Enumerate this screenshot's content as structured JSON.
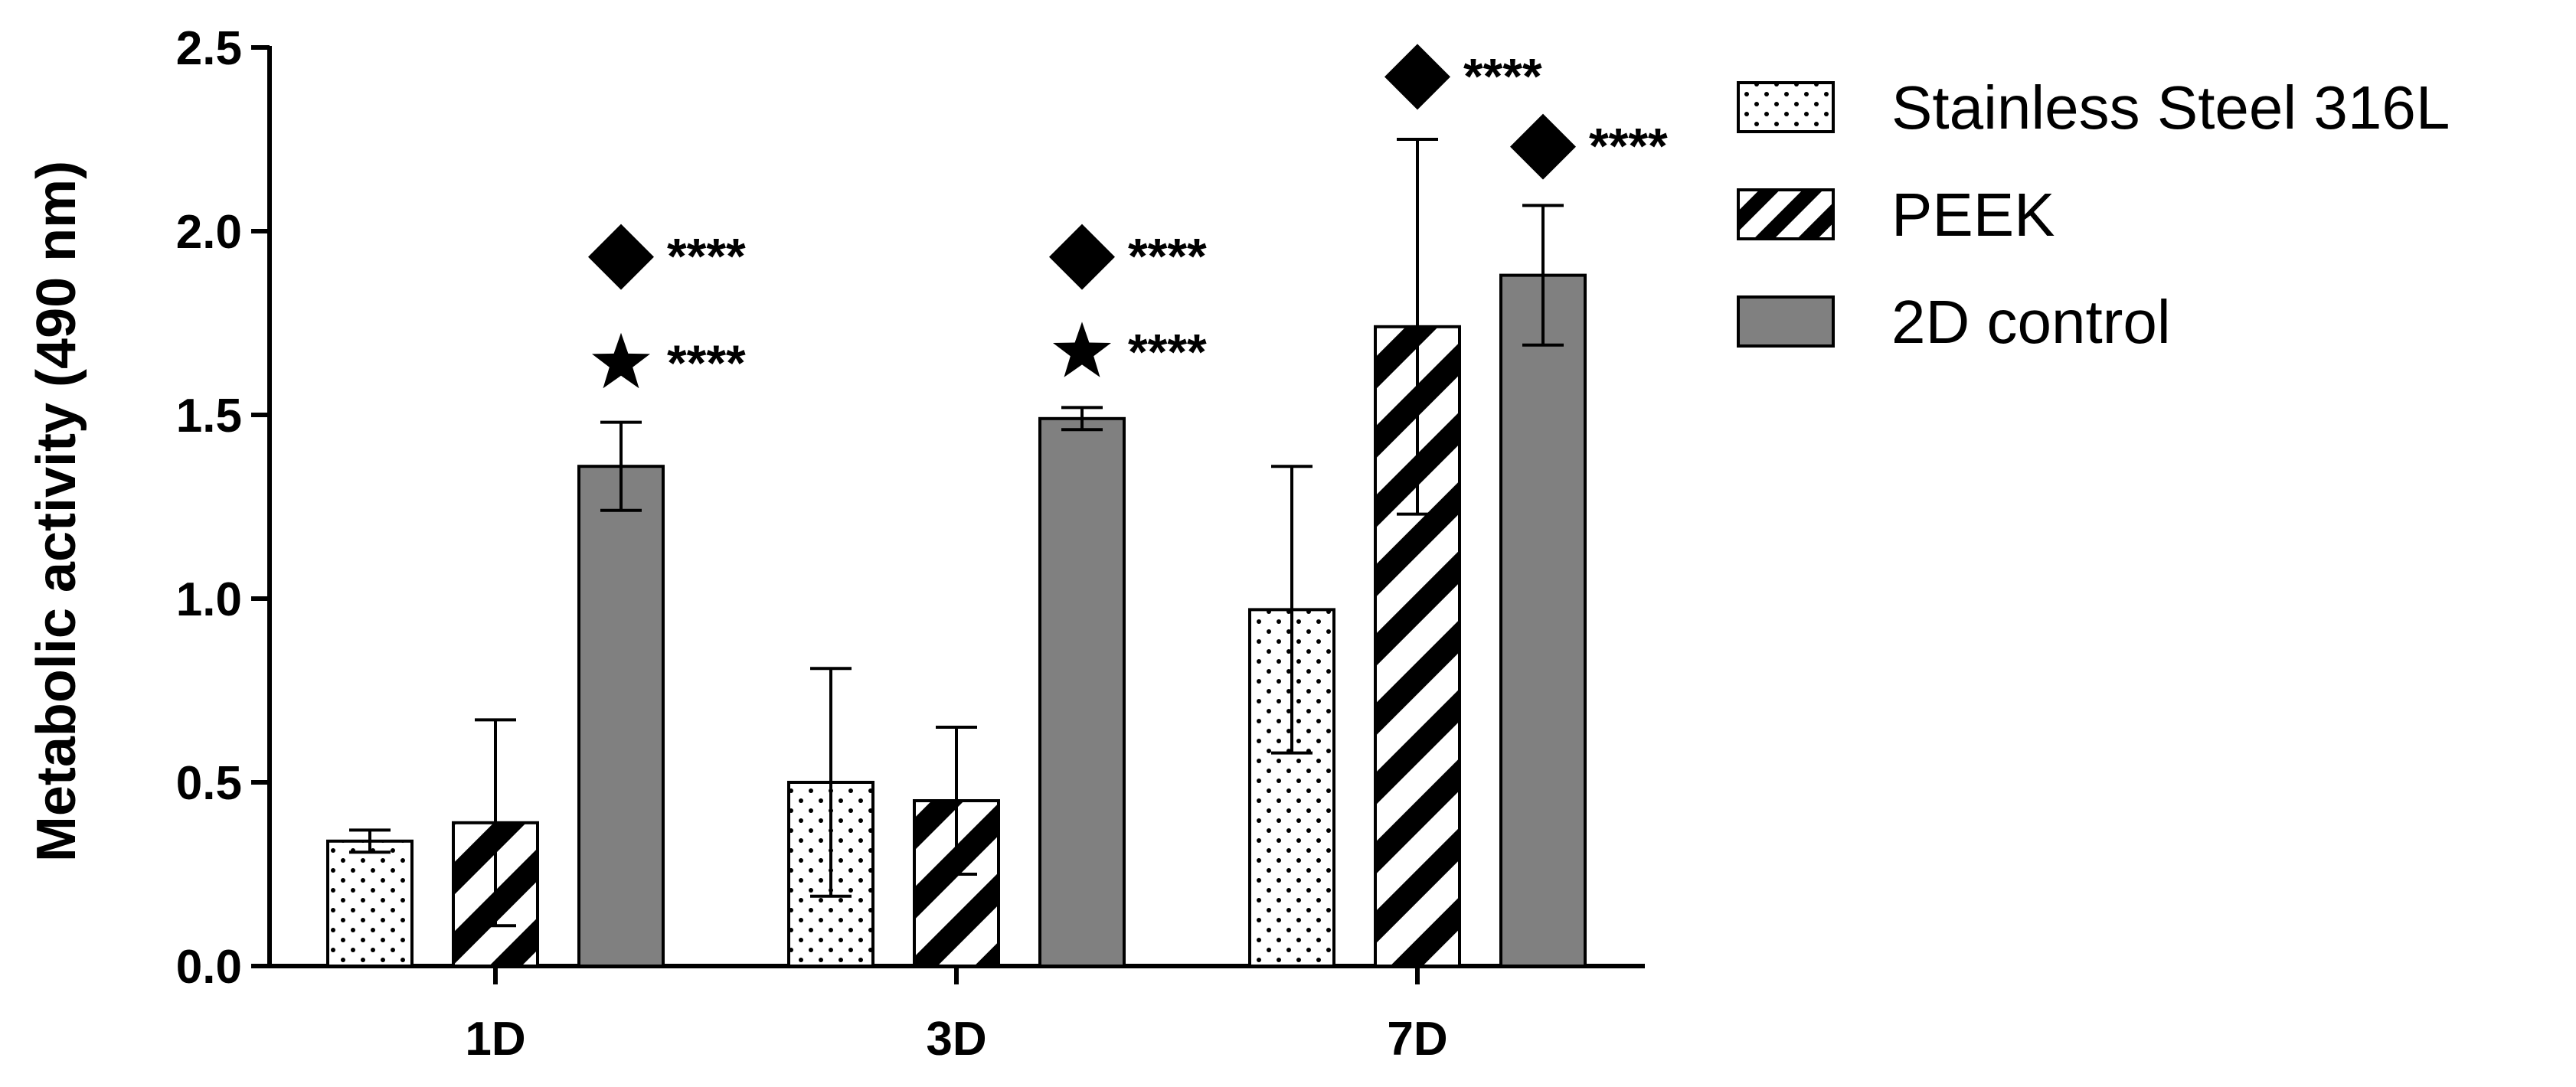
{
  "chart_data": {
    "type": "bar",
    "ylabel": "Metabolic activity (490 nm)",
    "xlabel": "",
    "categories": [
      "1D",
      "3D",
      "7D"
    ],
    "ylim": [
      0,
      2.5
    ],
    "yticks": [
      0.0,
      0.5,
      1.0,
      1.5,
      2.0,
      2.5
    ],
    "ytick_labels": [
      "0.0",
      "0.5",
      "1.0",
      "1.5",
      "2.0",
      "2.5"
    ],
    "grid": false,
    "legend_position": "right",
    "series": [
      {
        "name": "Stainless Steel 316L",
        "pattern": "dots",
        "color": "#ffffff",
        "values": [
          0.34,
          0.5,
          0.97
        ],
        "errors": [
          0.03,
          0.31,
          0.39
        ]
      },
      {
        "name": "PEEK",
        "pattern": "diagonal-stripes",
        "color": "#ffffff",
        "values": [
          0.39,
          0.45,
          1.74
        ],
        "errors": [
          0.28,
          0.2,
          0.51
        ]
      },
      {
        "name": "2D control",
        "pattern": "solid",
        "color": "#808080",
        "values": [
          1.36,
          1.49,
          1.88
        ],
        "errors": [
          0.12,
          0.03,
          0.19
        ]
      }
    ],
    "annotations": [
      {
        "category": "1D",
        "series": "2D control",
        "symbol": "diamond",
        "text": "****",
        "y": 1.93
      },
      {
        "category": "1D",
        "series": "2D control",
        "symbol": "star",
        "text": "****",
        "y": 1.64
      },
      {
        "category": "3D",
        "series": "2D control",
        "symbol": "diamond",
        "text": "****",
        "y": 1.93
      },
      {
        "category": "3D",
        "series": "2D control",
        "symbol": "star",
        "text": "****",
        "y": 1.67
      },
      {
        "category": "7D",
        "series": "PEEK",
        "symbol": "diamond",
        "text": "****",
        "y": 2.42
      },
      {
        "category": "7D",
        "series": "2D control",
        "symbol": "diamond",
        "text": "****",
        "y": 2.23
      }
    ]
  }
}
